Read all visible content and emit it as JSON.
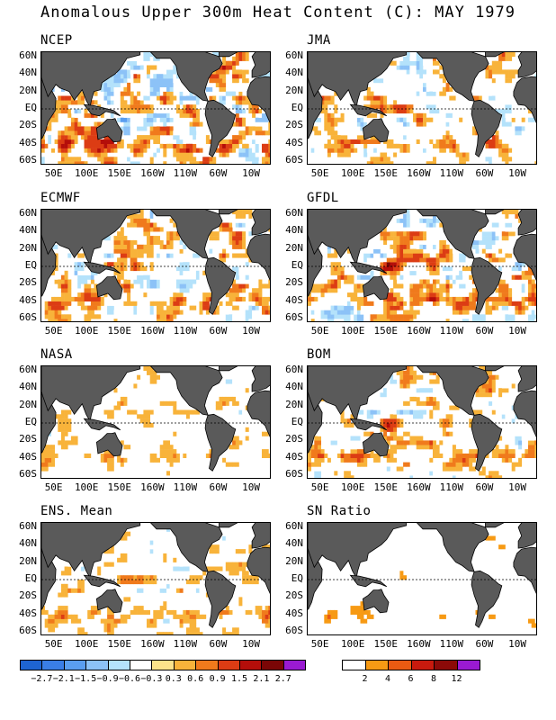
{
  "title": "Anomalous Upper 300m Heat Content (C): MAY 1979",
  "chart_data": {
    "type": "heatmap",
    "lat_ticks": [
      "60N",
      "40N",
      "20N",
      "EQ",
      "20S",
      "40S",
      "60S"
    ],
    "lon_ticks": [
      "50E",
      "100E",
      "150E",
      "160W",
      "110W",
      "60W",
      "10W"
    ],
    "lat_range": [
      -65,
      65
    ],
    "lon_range": [
      30,
      380
    ],
    "panels": [
      {
        "name": "NCEP",
        "intensity": 1.0
      },
      {
        "name": "JMA",
        "intensity": 0.7
      },
      {
        "name": "ECMWF",
        "intensity": 0.85
      },
      {
        "name": "GFDL",
        "intensity": 0.85
      },
      {
        "name": "NASA",
        "intensity": 0.45
      },
      {
        "name": "BOM",
        "intensity": 0.65
      },
      {
        "name": "ENS. Mean",
        "intensity": 0.5
      },
      {
        "name": "SN Ratio",
        "intensity": 0.5
      }
    ],
    "anomaly_colorbar": {
      "levels": [
        "-2.7",
        "-2.1",
        "-1.5",
        "-0.9",
        "-0.6",
        "-0.3",
        "0.3",
        "0.6",
        "0.9",
        "1.5",
        "2.1",
        "2.7"
      ],
      "colors": [
        "#1e64d2",
        "#3a7ee6",
        "#5a9ef0",
        "#8cc2f7",
        "#b4e2fb",
        "#ffffff",
        "#fbe28a",
        "#f8b33a",
        "#f07a1c",
        "#dc3c14",
        "#b40e0a",
        "#7a0606",
        "#9a1ad2"
      ]
    },
    "snr_colorbar": {
      "levels": [
        "2",
        "4",
        "6",
        "8",
        "12"
      ],
      "colors": [
        "#ffffff",
        "#f79a14",
        "#ea5a12",
        "#c81a0e",
        "#8c0a08",
        "#9a1ad2"
      ]
    },
    "land_color": "#5a5a5a"
  }
}
